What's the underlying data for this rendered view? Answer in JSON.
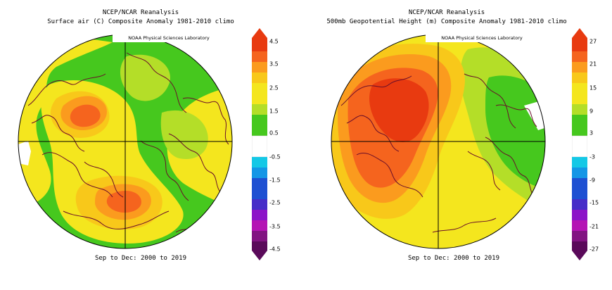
{
  "panels": [
    {
      "title_line1": "NCEP/NCAR Reanalysis",
      "title_line2": "Surface air (C) Composite Anomaly 1981-2010 climo",
      "credit": "NOAA Physical Sciences Laboratory",
      "footer": "Sep to Dec: 2000 to 2019",
      "colorbar_labels": [
        "4.5",
        "3.5",
        "2.5",
        "1.5",
        "0.5",
        "-0.5",
        "-1.5",
        "-2.5",
        "-3.5",
        "-4.5"
      ]
    },
    {
      "title_line1": "NCEP/NCAR Reanalysis",
      "title_line2": "500mb Geopotential Height (m) Composite Anomaly 1981-2010 climo",
      "credit": "NOAA Physical Sciences Laboratory",
      "footer": "Sep to Dec: 2000 to 2019",
      "colorbar_labels": [
        "27",
        "21",
        "15",
        "9",
        "3",
        "-3",
        "-9",
        "-15",
        "-21",
        "-27"
      ]
    }
  ],
  "colors": {
    "deep_red": "#e83a10",
    "orange_red": "#f5641e",
    "orange": "#fb9b1e",
    "gold": "#f8c81a",
    "yellow": "#f4e61e",
    "yellow_green": "#b4de28",
    "green": "#46c81e",
    "white": "#ffffff",
    "cyan": "#14c8e6",
    "sky": "#1496e6",
    "blue": "#1e50d2",
    "indigo": "#462dc8",
    "purple": "#8c14c8",
    "magenta": "#b414b4",
    "plum": "#821482",
    "dark_purple": "#5a0a5a"
  }
}
